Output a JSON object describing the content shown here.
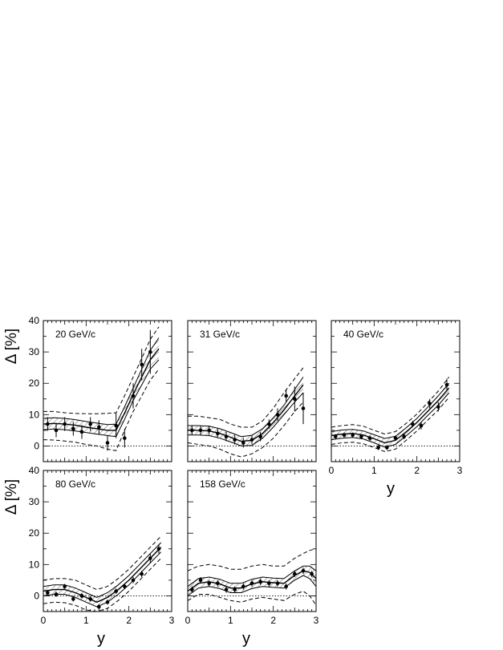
{
  "figure": {
    "y_axis_label": "Δ [%]",
    "x_axis_label": "y"
  },
  "chart_data": [
    {
      "type": "scatter",
      "panel": "20 GeV/c",
      "label": "20 GeV/c",
      "xlim": [
        0,
        3
      ],
      "ylim": [
        -5,
        40
      ],
      "xticks": [],
      "yticks": [
        "0",
        "10",
        "20",
        "30",
        "40"
      ],
      "zero_line": true,
      "points": [
        {
          "x": 0.1,
          "y": 7.0,
          "err": 2.2
        },
        {
          "x": 0.3,
          "y": 5.0,
          "err": 2.2
        },
        {
          "x": 0.5,
          "y": 7.0,
          "err": 2.2
        },
        {
          "x": 0.7,
          "y": 5.5,
          "err": 2.2
        },
        {
          "x": 0.9,
          "y": 4.5,
          "err": 2.2
        },
        {
          "x": 1.1,
          "y": 7.0,
          "err": 2.2
        },
        {
          "x": 1.3,
          "y": 6.0,
          "err": 2.2
        },
        {
          "x": 1.5,
          "y": 1.0,
          "err": 2.5
        },
        {
          "x": 1.7,
          "y": 6.5,
          "err": 4.0
        },
        {
          "x": 1.9,
          "y": 2.5,
          "err": 3.0
        },
        {
          "x": 2.1,
          "y": 16.0,
          "err": 4.0
        },
        {
          "x": 2.3,
          "y": 26.0,
          "err": 5.0
        },
        {
          "x": 2.5,
          "y": 30.0,
          "err": 7.0
        }
      ],
      "band": {
        "x": [
          0,
          0.25,
          0.5,
          0.75,
          1.0,
          1.25,
          1.5,
          1.7,
          1.9,
          2.1,
          2.3,
          2.5,
          2.7
        ],
        "center": [
          7.0,
          7.2,
          7.0,
          6.6,
          6.0,
          5.5,
          5.0,
          5.0,
          10.5,
          16.5,
          22.0,
          27.5,
          31.0
        ],
        "inner_lo": [
          5.2,
          5.4,
          5.2,
          4.8,
          4.3,
          3.8,
          3.3,
          3.0,
          8.5,
          14.5,
          19.5,
          24.5,
          27.5
        ],
        "inner_hi": [
          8.8,
          9.0,
          8.8,
          8.4,
          7.8,
          7.3,
          6.8,
          7.0,
          12.5,
          18.5,
          24.5,
          30.5,
          34.5
        ],
        "outer_lo": [
          2.0,
          1.9,
          1.6,
          1.2,
          0.5,
          0.0,
          -1.0,
          -1.5,
          5.0,
          11.0,
          16.0,
          21.0,
          24.5
        ],
        "outer_hi": [
          11.0,
          11.0,
          10.6,
          10.4,
          10.3,
          10.3,
          10.4,
          10.6,
          16.0,
          22.0,
          28.0,
          34.0,
          38.0
        ]
      }
    },
    {
      "type": "scatter",
      "panel": "31 GeV/c",
      "label": "31 GeV/c",
      "xlim": [
        0,
        3
      ],
      "ylim": [
        -5,
        40
      ],
      "xticks": [],
      "yticks": [],
      "zero_line": true,
      "points": [
        {
          "x": 0.1,
          "y": 5.0,
          "err": 1.5
        },
        {
          "x": 0.3,
          "y": 5.0,
          "err": 1.5
        },
        {
          "x": 0.5,
          "y": 5.0,
          "err": 1.5
        },
        {
          "x": 0.7,
          "y": 4.0,
          "err": 1.5
        },
        {
          "x": 0.9,
          "y": 3.0,
          "err": 1.5
        },
        {
          "x": 1.1,
          "y": 2.0,
          "err": 1.5
        },
        {
          "x": 1.3,
          "y": 1.0,
          "err": 1.5
        },
        {
          "x": 1.5,
          "y": 2.0,
          "err": 1.5
        },
        {
          "x": 1.7,
          "y": 3.0,
          "err": 1.5
        },
        {
          "x": 1.9,
          "y": 7.0,
          "err": 1.5
        },
        {
          "x": 2.1,
          "y": 10.0,
          "err": 2.0
        },
        {
          "x": 2.3,
          "y": 16.0,
          "err": 2.0
        },
        {
          "x": 2.5,
          "y": 15.0,
          "err": 4.0
        },
        {
          "x": 2.7,
          "y": 12.0,
          "err": 5.0
        }
      ],
      "band": {
        "x": [
          0,
          0.25,
          0.5,
          0.75,
          1.0,
          1.25,
          1.5,
          1.75,
          2.0,
          2.25,
          2.5,
          2.7
        ],
        "center": [
          5.0,
          5.0,
          4.8,
          4.0,
          2.8,
          1.5,
          1.8,
          4.0,
          7.5,
          11.5,
          16.0,
          19.5
        ],
        "inner_lo": [
          3.5,
          3.5,
          3.3,
          2.5,
          1.3,
          0.0,
          0.2,
          2.5,
          6.0,
          10.0,
          14.0,
          17.0
        ],
        "inner_hi": [
          6.5,
          6.5,
          6.3,
          5.5,
          4.3,
          3.0,
          3.4,
          5.5,
          9.0,
          13.0,
          18.0,
          22.0
        ],
        "outer_lo": [
          1.0,
          0.5,
          0.0,
          -1.0,
          -2.5,
          -3.5,
          -2.5,
          -0.5,
          2.5,
          6.5,
          11.0,
          14.0
        ],
        "outer_hi": [
          9.5,
          9.5,
          9.0,
          8.5,
          7.0,
          6.0,
          6.0,
          8.0,
          12.0,
          17.0,
          21.5,
          25.0
        ]
      }
    },
    {
      "type": "scatter",
      "panel": "40 GeV/c",
      "label": "40 GeV/c",
      "xlim": [
        0,
        3
      ],
      "ylim": [
        -5,
        40
      ],
      "xticks": [
        "0",
        "1",
        "2",
        "3"
      ],
      "yticks": [],
      "zero_line": true,
      "points": [
        {
          "x": 0.1,
          "y": 3.0,
          "err": 0.8
        },
        {
          "x": 0.3,
          "y": 3.5,
          "err": 0.8
        },
        {
          "x": 0.5,
          "y": 3.5,
          "err": 0.8
        },
        {
          "x": 0.7,
          "y": 3.0,
          "err": 0.8
        },
        {
          "x": 0.9,
          "y": 2.5,
          "err": 0.8
        },
        {
          "x": 1.1,
          "y": -0.5,
          "err": 0.8
        },
        {
          "x": 1.3,
          "y": -0.5,
          "err": 0.8
        },
        {
          "x": 1.5,
          "y": 2.5,
          "err": 0.8
        },
        {
          "x": 1.7,
          "y": 3.0,
          "err": 0.8
        },
        {
          "x": 1.9,
          "y": 7.0,
          "err": 1.0
        },
        {
          "x": 2.1,
          "y": 6.5,
          "err": 1.2
        },
        {
          "x": 2.3,
          "y": 13.5,
          "err": 1.5
        },
        {
          "x": 2.5,
          "y": 12.5,
          "err": 1.5
        },
        {
          "x": 2.7,
          "y": 19.5,
          "err": 2.0
        }
      ],
      "band": {
        "x": [
          0,
          0.25,
          0.5,
          0.75,
          1.0,
          1.25,
          1.5,
          1.75,
          2.0,
          2.25,
          2.5,
          2.75
        ],
        "center": [
          3.3,
          3.8,
          4.0,
          3.5,
          2.3,
          1.0,
          1.8,
          4.5,
          7.5,
          11.0,
          14.5,
          18.5
        ],
        "inner_lo": [
          2.0,
          2.5,
          2.7,
          2.2,
          1.0,
          -0.4,
          0.5,
          3.2,
          6.2,
          9.7,
          13.0,
          17.0
        ],
        "inner_hi": [
          4.6,
          5.1,
          5.3,
          4.8,
          3.6,
          2.4,
          3.1,
          5.8,
          8.8,
          12.3,
          16.0,
          20.0
        ],
        "outer_lo": [
          0.5,
          1.0,
          1.2,
          0.7,
          -0.5,
          -1.8,
          -1.0,
          1.8,
          4.8,
          8.2,
          11.5,
          15.5
        ],
        "outer_hi": [
          6.0,
          6.5,
          6.8,
          6.3,
          5.0,
          3.8,
          4.6,
          7.2,
          10.2,
          13.8,
          17.5,
          22.0
        ]
      }
    },
    {
      "type": "scatter",
      "panel": "80 GeV/c",
      "label": "80 GeV/c",
      "xlim": [
        0,
        3
      ],
      "ylim": [
        -5,
        40
      ],
      "xticks": [
        "0",
        "1",
        "2",
        "3"
      ],
      "yticks": [
        "0",
        "10",
        "20",
        "30",
        "40"
      ],
      "zero_line": true,
      "points": [
        {
          "x": 0.1,
          "y": 1.0,
          "err": 0.8
        },
        {
          "x": 0.3,
          "y": 0.5,
          "err": 0.8
        },
        {
          "x": 0.5,
          "y": 3.0,
          "err": 0.8
        },
        {
          "x": 0.7,
          "y": -1.0,
          "err": 0.8
        },
        {
          "x": 0.9,
          "y": 0.0,
          "err": 0.8
        },
        {
          "x": 1.1,
          "y": -1.0,
          "err": 0.8
        },
        {
          "x": 1.3,
          "y": -3.5,
          "err": 0.8
        },
        {
          "x": 1.5,
          "y": -2.0,
          "err": 0.8
        },
        {
          "x": 1.7,
          "y": 1.5,
          "err": 0.8
        },
        {
          "x": 1.9,
          "y": 3.0,
          "err": 0.8
        },
        {
          "x": 2.1,
          "y": 5.0,
          "err": 1.0
        },
        {
          "x": 2.3,
          "y": 7.0,
          "err": 1.0
        },
        {
          "x": 2.5,
          "y": 12.0,
          "err": 1.5
        },
        {
          "x": 2.7,
          "y": 15.0,
          "err": 1.5
        }
      ],
      "band": {
        "x": [
          0,
          0.25,
          0.5,
          0.75,
          1.0,
          1.25,
          1.5,
          1.75,
          2.0,
          2.25,
          2.5,
          2.75
        ],
        "center": [
          1.5,
          2.0,
          2.0,
          1.0,
          -0.5,
          -2.0,
          -0.5,
          2.0,
          5.0,
          8.5,
          12.0,
          15.5
        ],
        "inner_lo": [
          0.0,
          0.5,
          0.5,
          -0.5,
          -2.0,
          -3.5,
          -2.0,
          0.5,
          3.5,
          7.0,
          10.5,
          14.0
        ],
        "inner_hi": [
          3.0,
          3.5,
          3.5,
          2.5,
          1.0,
          -0.5,
          1.0,
          3.5,
          6.5,
          10.0,
          13.5,
          17.0
        ],
        "outer_lo": [
          -2.5,
          -2.0,
          -2.2,
          -3.0,
          -4.5,
          -5.0,
          -4.0,
          -1.5,
          1.5,
          5.0,
          8.5,
          12.0
        ],
        "outer_hi": [
          5.0,
          5.5,
          5.5,
          5.0,
          3.5,
          2.0,
          3.0,
          5.5,
          8.5,
          12.0,
          15.5,
          19.0
        ]
      }
    },
    {
      "type": "scatter",
      "panel": "158 GeV/c",
      "label": "158 GeV/c",
      "xlim": [
        0,
        3
      ],
      "ylim": [
        -5,
        40
      ],
      "xticks": [
        "0",
        "1",
        "2",
        "3"
      ],
      "yticks": [],
      "zero_line": true,
      "points": [
        {
          "x": 0.1,
          "y": 2.0,
          "err": 1.0
        },
        {
          "x": 0.3,
          "y": 5.0,
          "err": 1.0
        },
        {
          "x": 0.5,
          "y": 4.0,
          "err": 1.0
        },
        {
          "x": 0.7,
          "y": 4.0,
          "err": 1.0
        },
        {
          "x": 0.9,
          "y": 2.0,
          "err": 1.0
        },
        {
          "x": 1.1,
          "y": 2.0,
          "err": 1.0
        },
        {
          "x": 1.3,
          "y": 3.0,
          "err": 1.0
        },
        {
          "x": 1.5,
          "y": 4.0,
          "err": 1.0
        },
        {
          "x": 1.7,
          "y": 4.5,
          "err": 1.0
        },
        {
          "x": 1.9,
          "y": 4.0,
          "err": 1.0
        },
        {
          "x": 2.1,
          "y": 4.0,
          "err": 1.0
        },
        {
          "x": 2.3,
          "y": 3.0,
          "err": 1.0
        },
        {
          "x": 2.5,
          "y": 7.0,
          "err": 1.0
        },
        {
          "x": 2.7,
          "y": 8.0,
          "err": 1.0
        },
        {
          "x": 2.9,
          "y": 7.0,
          "err": 1.0
        }
      ],
      "band": {
        "x": [
          0,
          0.25,
          0.5,
          0.75,
          1.0,
          1.25,
          1.5,
          1.75,
          2.0,
          2.25,
          2.5,
          2.7,
          2.85,
          3.0
        ],
        "center": [
          1.5,
          4.0,
          4.5,
          3.8,
          2.5,
          2.5,
          3.8,
          4.5,
          4.2,
          4.0,
          6.5,
          8.0,
          7.5,
          5.5
        ],
        "inner_lo": [
          0.0,
          2.5,
          3.0,
          2.3,
          1.0,
          1.0,
          2.3,
          3.0,
          2.7,
          2.5,
          5.0,
          6.5,
          5.5,
          3.0
        ],
        "inner_hi": [
          3.0,
          5.5,
          6.0,
          5.3,
          4.0,
          4.0,
          5.3,
          6.0,
          5.7,
          5.5,
          8.0,
          9.5,
          9.5,
          8.0
        ],
        "outer_lo": [
          -1.5,
          0.5,
          0.5,
          -0.5,
          -1.5,
          -2.0,
          -1.0,
          -0.5,
          -1.0,
          -1.5,
          0.5,
          1.5,
          0.0,
          -3.0
        ],
        "outer_hi": [
          8.0,
          9.5,
          10.0,
          9.5,
          8.5,
          8.5,
          9.5,
          10.0,
          9.5,
          9.5,
          12.0,
          13.5,
          14.5,
          15.0
        ]
      }
    }
  ]
}
